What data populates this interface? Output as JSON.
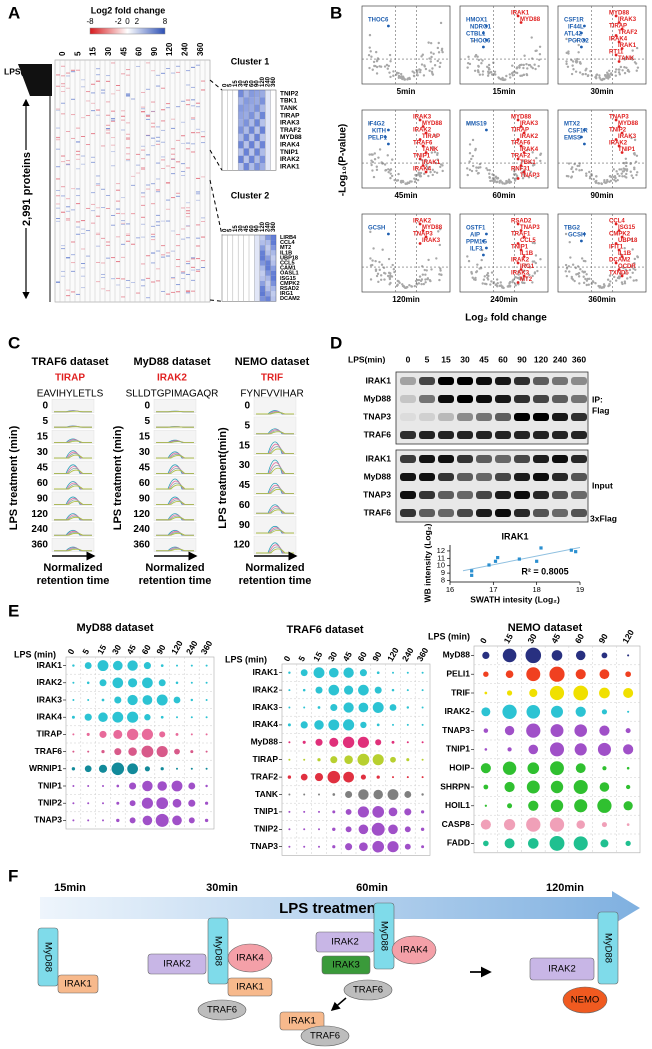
{
  "panel_a": {
    "label": "A",
    "legend_title": "Log2 fold change",
    "legend_ticks": [
      -8,
      -2,
      0,
      2,
      8
    ],
    "lps_label": "LPS(min)",
    "times": [
      0,
      5,
      15,
      30,
      45,
      60,
      90,
      120,
      240,
      360
    ],
    "proteins_label": "2,991 proteins",
    "cluster1": {
      "title": "Cluster 1",
      "times": [
        0,
        5,
        15,
        30,
        45,
        60,
        90,
        120,
        240,
        360
      ],
      "genes": [
        "TNIP2",
        "TBK1",
        "TANK",
        "TIRAP",
        "IRAK3",
        "TRAF2",
        "MYD88",
        "IRAK4",
        "TNIP1",
        "IRAK2",
        "IRAK1"
      ]
    },
    "cluster2": {
      "title": "Cluster 2",
      "times": [
        0,
        5,
        15,
        30,
        45,
        60,
        90,
        120,
        240,
        360
      ],
      "genes": [
        "LIRB4",
        "CCL4",
        "MT2",
        "IL1B",
        "UBP18",
        "CCL5",
        "CAM1",
        "OASL1",
        "ISG15",
        "CMPK2",
        "RSAD2",
        "IRG1",
        "DCAM2"
      ]
    }
  },
  "panel_b": {
    "label": "B",
    "y_label": "-Log₁₀(P-value)",
    "x_label": "Log₂ fold change",
    "plots": [
      {
        "time": "5min",
        "up": [],
        "down": [
          "THOC6"
        ]
      },
      {
        "time": "15min",
        "up": [
          "IRAK1",
          "MYD88"
        ],
        "down": [
          "HMOX1",
          "NDRG1",
          "CTBL1",
          "THOC6"
        ]
      },
      {
        "time": "30min",
        "up": [
          "MYD88",
          "IRAK3",
          "TIRAP",
          "TRAF2",
          "IRAK4",
          "IRAK1",
          "RT11",
          "TANK"
        ],
        "down": [
          "CSF1R",
          "IF44L",
          "ATL42",
          "PGRC2"
        ]
      },
      {
        "time": "45min",
        "up": [
          "IRAK3",
          "MYD88",
          "IRAK2",
          "TIRAP",
          "TRAF6",
          "TANK",
          "TNIP1",
          "IRAK1",
          "IRAK4"
        ],
        "down": [
          "IF4G2",
          "KITH",
          "PELP1"
        ]
      },
      {
        "time": "60min",
        "up": [
          "MYD88",
          "IRAK3",
          "TIRAP",
          "IRAK2",
          "TRAF6",
          "IRAK4",
          "TRAF2",
          "TBK1",
          "RNF31",
          "TNAP3"
        ],
        "down": [
          "MMS19"
        ]
      },
      {
        "time": "90min",
        "up": [
          "TNAP3",
          "MYD88",
          "TNIP2",
          "IRAK3",
          "IRAK2",
          "TNIP1"
        ],
        "down": [
          "MTX2",
          "CSF1R",
          "EMSS"
        ]
      },
      {
        "time": "120min",
        "up": [
          "IRAK2",
          "MYD88",
          "TNAP3",
          "IRAK3"
        ],
        "down": [
          "GCSH"
        ]
      },
      {
        "time": "240min",
        "up": [
          "RSAD2",
          "TNAP3",
          "TRAF1",
          "CCL5",
          "TNIP1",
          "IL1B",
          "IRAK2",
          "IRG1",
          "IRAK3",
          "MT2"
        ],
        "down": [
          "OSTF1",
          "AIP",
          "PPM1G",
          "ILF3"
        ]
      },
      {
        "time": "360min",
        "up": [
          "CCL4",
          "ISG15",
          "CMPK2",
          "UBP18",
          "IFIT1",
          "IL1B",
          "DCAM2",
          "OCDR",
          "TXND5"
        ],
        "down": [
          "TBG2",
          "GCSH"
        ]
      }
    ]
  },
  "panel_c": {
    "label": "C",
    "columns": [
      {
        "dataset": "TRAF6 dataset",
        "protein": "TIRAP",
        "peptide": "EAVIHYLETLS",
        "times": [
          0,
          5,
          15,
          30,
          45,
          60,
          90,
          120,
          240,
          360
        ],
        "y_label": "LPS treatment (min)",
        "x_label": [
          "Normalized",
          "retention time"
        ]
      },
      {
        "dataset": "MyD88 dataset",
        "protein": "IRAK2",
        "peptide": "SLLDTGPIMAGAQR",
        "times": [
          0,
          5,
          15,
          30,
          45,
          60,
          90,
          120,
          240,
          360
        ],
        "y_label": "LPS treatment (min)",
        "x_label": [
          "Normalized",
          "retention time"
        ]
      },
      {
        "dataset": "NEMO dataset",
        "protein": "TRIF",
        "peptide": "FYNFVVIHAR",
        "times": [
          0,
          5,
          15,
          30,
          45,
          60,
          90,
          120
        ],
        "y_label": "LPS treatment(min)",
        "x_label": [
          "Normalized",
          "retention time"
        ]
      }
    ]
  },
  "panel_d": {
    "label": "D",
    "lps_label": "LPS(min)",
    "times": [
      0,
      5,
      15,
      30,
      45,
      60,
      90,
      120,
      240,
      360
    ],
    "ip_rows": [
      "IRAK1",
      "MyD88",
      "TNAP3",
      "TRAF6"
    ],
    "ip_label": [
      "IP:",
      "Flag"
    ],
    "input_rows": [
      "IRAK1",
      "MyD88",
      "TNAP3",
      "TRAF6"
    ],
    "input_label": "Input",
    "flag_label": "3xFlag",
    "scatter": {
      "title": "IRAK1",
      "x_label": "SWATH intesity (Log₂)",
      "y_label": "WB intensity (Log₂)",
      "annotation": "R² = 0.8005",
      "x": [
        16.5,
        16.5,
        16.9,
        17.05,
        17.1,
        17.6,
        18.0,
        18.1,
        18.8,
        18.9
      ],
      "y": [
        9.3,
        8.7,
        10.1,
        10.6,
        11.1,
        10.9,
        10.6,
        12.4,
        12.1,
        11.9
      ],
      "xlim": [
        16,
        19
      ],
      "ylim": [
        7.8,
        12.8
      ],
      "xticks": [
        16,
        17,
        18,
        19
      ],
      "yticks": [
        8,
        9,
        10,
        11,
        12
      ]
    }
  },
  "panel_e": {
    "label": "E",
    "datasets": [
      {
        "title": "MyD88 dataset",
        "lps_label": "LPS (min)",
        "times": [
          0,
          5,
          15,
          30,
          45,
          60,
          90,
          120,
          240,
          360
        ],
        "rows": [
          "IRAK1",
          "IRAK2",
          "IRAK3",
          "IRAK4",
          "TIRAP",
          "TRAF6",
          "WRNIP1",
          "TNIP1",
          "TNIP2",
          "TNAP3"
        ]
      },
      {
        "title": "TRAF6 dataset",
        "lps_label": "LPS (min)",
        "times": [
          0,
          5,
          15,
          30,
          45,
          60,
          90,
          120,
          240,
          360
        ],
        "rows": [
          "IRAK1",
          "IRAK2",
          "IRAK3",
          "IRAK4",
          "MyD88",
          "TIRAP",
          "TRAF2",
          "TANK",
          "TNIP1",
          "TNIP2",
          "TNAP3"
        ]
      },
      {
        "title": "NEMO dataset",
        "lps_label": "LPS (min)",
        "times": [
          0,
          15,
          30,
          45,
          60,
          90,
          120
        ],
        "rows": [
          "MyD88",
          "PELI1",
          "TRIF",
          "IRAK2",
          "TNAP3",
          "TNIP1",
          "HOIP",
          "SHRPN",
          "HOIL1",
          "CASP8",
          "FADD"
        ]
      }
    ]
  },
  "panel_f": {
    "label": "F",
    "times": [
      "15min",
      "30min",
      "60min",
      "120min"
    ],
    "arrow_label": "LPS treatment",
    "nodes": [
      "MyD88",
      "IRAK1",
      "IRAK2",
      "MyD88",
      "IRAK4",
      "IRAK1",
      "TRAF6",
      "IRAK2",
      "MyD88",
      "IRAK4",
      "IRAK3",
      "TRAF6",
      "IRAK1",
      "TRAF6",
      "IRAK2",
      "MyD88",
      "NEMO"
    ]
  }
}
